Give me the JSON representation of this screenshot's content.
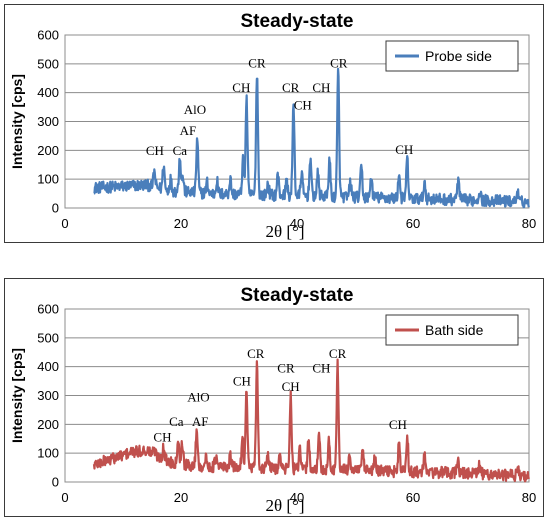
{
  "chart_data": [
    {
      "type": "line",
      "title": "Steady-state",
      "xlabel": "2θ [°]",
      "ylabel": "Intensity [cps]",
      "xlim": [
        0,
        80
      ],
      "ylim": [
        0,
        600
      ],
      "xticks": [
        0,
        20,
        40,
        60,
        80
      ],
      "yticks": [
        0,
        100,
        200,
        300,
        400,
        500,
        600
      ],
      "grid": "horizontal",
      "legend": "top-right",
      "color": "#4a7ebb",
      "series": [
        {
          "name": "Probe side",
          "baseline": [
            [
              5,
              70
            ],
            [
              10,
              75
            ],
            [
              14,
              80
            ],
            [
              18,
              60
            ],
            [
              25,
              50
            ],
            [
              35,
              45
            ],
            [
              45,
              40
            ],
            [
              55,
              35
            ],
            [
              65,
              30
            ],
            [
              75,
              25
            ],
            [
              80,
              20
            ]
          ],
          "peaks": [
            [
              15.4,
              125
            ],
            [
              17,
              150
            ],
            [
              18.2,
              100
            ],
            [
              19.8,
              180
            ],
            [
              20.3,
              110
            ],
            [
              22.8,
              240
            ],
            [
              24.5,
              90
            ],
            [
              26.2,
              95
            ],
            [
              28.5,
              100
            ],
            [
              30.7,
              170
            ],
            [
              31.3,
              380
            ],
            [
              33.1,
              470
            ],
            [
              35,
              85
            ],
            [
              36.7,
              115
            ],
            [
              38.2,
              95
            ],
            [
              39.4,
              360
            ],
            [
              40.8,
              125
            ],
            [
              42.3,
              175
            ],
            [
              43.6,
              120
            ],
            [
              45.6,
              170
            ],
            [
              47.1,
              475
            ],
            [
              49.2,
              90
            ],
            [
              51.1,
              145
            ],
            [
              52.8,
              110
            ],
            [
              57.6,
              120
            ],
            [
              59,
              170
            ],
            [
              62,
              90
            ],
            [
              67.8,
              100
            ],
            [
              71.5,
              65
            ],
            [
              78,
              55
            ]
          ]
        }
      ],
      "annotations": [
        {
          "text": "CH",
          "x": 15.5,
          "y": 183
        },
        {
          "text": "Ca",
          "x": 19.8,
          "y": 183
        },
        {
          "text": "AlO",
          "x": 22.4,
          "y": 326
        },
        {
          "text": "AF",
          "x": 21.2,
          "y": 253
        },
        {
          "text": "CH",
          "x": 30.4,
          "y": 402
        },
        {
          "text": "CR",
          "x": 33.1,
          "y": 487
        },
        {
          "text": "CR",
          "x": 38.9,
          "y": 403
        },
        {
          "text": "CH",
          "x": 41,
          "y": 342
        },
        {
          "text": "CH",
          "x": 44.2,
          "y": 402
        },
        {
          "text": "CR",
          "x": 47.2,
          "y": 487
        },
        {
          "text": "CH",
          "x": 58.5,
          "y": 187
        }
      ]
    },
    {
      "type": "line",
      "title": "Steady-state",
      "xlabel": "2θ [°]",
      "ylabel": "Intensity [cps]",
      "xlim": [
        0,
        80
      ],
      "ylim": [
        0,
        600
      ],
      "xticks": [
        0,
        20,
        40,
        60,
        80
      ],
      "yticks": [
        0,
        100,
        200,
        300,
        400,
        500,
        600
      ],
      "grid": "horizontal",
      "legend": "top-right",
      "color": "#c0504d",
      "series": [
        {
          "name": "Bath side",
          "baseline": [
            [
              5,
              60
            ],
            [
              8,
              80
            ],
            [
              11,
              100
            ],
            [
              14,
              110
            ],
            [
              16,
              90
            ],
            [
              18,
              70
            ],
            [
              22,
              55
            ],
            [
              30,
              50
            ],
            [
              40,
              45
            ],
            [
              50,
              40
            ],
            [
              60,
              35
            ],
            [
              70,
              30
            ],
            [
              80,
              20
            ]
          ],
          "peaks": [
            [
              15.4,
              110
            ],
            [
              17,
              120
            ],
            [
              19.5,
              155
            ],
            [
              20.2,
              140
            ],
            [
              22.7,
              185
            ],
            [
              24.3,
              80
            ],
            [
              26,
              85
            ],
            [
              28.5,
              90
            ],
            [
              30.6,
              155
            ],
            [
              31.3,
              315
            ],
            [
              33.1,
              410
            ],
            [
              35,
              90
            ],
            [
              37,
              100
            ],
            [
              38.9,
              300
            ],
            [
              40.5,
              110
            ],
            [
              42,
              150
            ],
            [
              43.8,
              160
            ],
            [
              45.5,
              140
            ],
            [
              47,
              410
            ],
            [
              49.1,
              95
            ],
            [
              51.3,
              110
            ],
            [
              53.4,
              85
            ],
            [
              57.6,
              135
            ],
            [
              59,
              165
            ],
            [
              62,
              90
            ],
            [
              67.7,
              80
            ],
            [
              71.5,
              60
            ],
            [
              78,
              55
            ]
          ]
        }
      ],
      "annotations": [
        {
          "text": "CH",
          "x": 16.8,
          "y": 140
        },
        {
          "text": "Ca",
          "x": 19.2,
          "y": 195
        },
        {
          "text": "AF",
          "x": 23.3,
          "y": 195
        },
        {
          "text": "AlO",
          "x": 23,
          "y": 280
        },
        {
          "text": "CH",
          "x": 30.5,
          "y": 335
        },
        {
          "text": "CR",
          "x": 32.9,
          "y": 430
        },
        {
          "text": "CR",
          "x": 38.1,
          "y": 380
        },
        {
          "text": "CH",
          "x": 38.9,
          "y": 315
        },
        {
          "text": "CH",
          "x": 44.2,
          "y": 380
        },
        {
          "text": "CR",
          "x": 47,
          "y": 430
        },
        {
          "text": "CH",
          "x": 57.4,
          "y": 183
        }
      ]
    }
  ]
}
